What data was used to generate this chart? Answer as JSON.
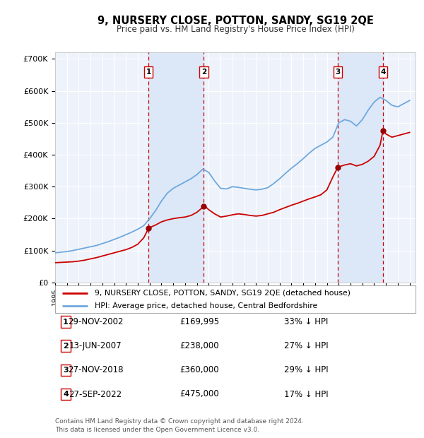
{
  "title": "9, NURSERY CLOSE, POTTON, SANDY, SG19 2QE",
  "subtitle": "Price paid vs. HM Land Registry's House Price Index (HPI)",
  "background_color": "#ffffff",
  "plot_background": "#eef3fb",
  "grid_color": "#ffffff",
  "sale_dates_num": [
    2002.91,
    2007.58,
    2018.91,
    2022.74
  ],
  "sale_labels": [
    "1",
    "2",
    "3",
    "4"
  ],
  "sale_info": [
    {
      "num": "1",
      "date": "29-NOV-2002",
      "price": "£169,995",
      "pct": "33% ↓ HPI"
    },
    {
      "num": "2",
      "date": "13-JUN-2007",
      "price": "£238,000",
      "pct": "27% ↓ HPI"
    },
    {
      "num": "3",
      "date": "27-NOV-2018",
      "price": "£360,000",
      "pct": "29% ↓ HPI"
    },
    {
      "num": "4",
      "date": "27-SEP-2022",
      "price": "£475,000",
      "pct": "17% ↓ HPI"
    }
  ],
  "legend_line1": "9, NURSERY CLOSE, POTTON, SANDY, SG19 2QE (detached house)",
  "legend_line2": "HPI: Average price, detached house, Central Bedfordshire",
  "footer": "Contains HM Land Registry data © Crown copyright and database right 2024.\nThis data is licensed under the Open Government Licence v3.0.",
  "hpi_color": "#6fa8dc",
  "price_color": "#cc0000",
  "vline_color": "#cc0000",
  "shade_color": "#dce8f8",
  "dot_color": "#990000",
  "ylim": [
    0,
    720000
  ],
  "xlim_start": 1995.0,
  "xlim_end": 2025.5,
  "hpi_data_x": [
    1995.0,
    1995.5,
    1996.0,
    1996.5,
    1997.0,
    1997.5,
    1998.0,
    1998.5,
    1999.0,
    1999.5,
    2000.0,
    2000.5,
    2001.0,
    2001.5,
    2002.0,
    2002.5,
    2003.0,
    2003.5,
    2004.0,
    2004.5,
    2005.0,
    2005.5,
    2006.0,
    2006.5,
    2007.0,
    2007.5,
    2008.0,
    2008.5,
    2009.0,
    2009.5,
    2010.0,
    2010.5,
    2011.0,
    2011.5,
    2012.0,
    2012.5,
    2013.0,
    2013.5,
    2014.0,
    2014.5,
    2015.0,
    2015.5,
    2016.0,
    2016.5,
    2017.0,
    2017.5,
    2018.0,
    2018.5,
    2019.0,
    2019.5,
    2020.0,
    2020.5,
    2021.0,
    2021.5,
    2022.0,
    2022.5,
    2023.0,
    2023.5,
    2024.0,
    2024.5,
    2025.0
  ],
  "hpi_data_y": [
    93000,
    95000,
    97000,
    100000,
    104000,
    108000,
    112000,
    116000,
    122000,
    128000,
    135000,
    142000,
    150000,
    158000,
    167000,
    178000,
    200000,
    225000,
    255000,
    280000,
    295000,
    305000,
    315000,
    325000,
    338000,
    355000,
    345000,
    318000,
    295000,
    293000,
    300000,
    298000,
    295000,
    292000,
    290000,
    292000,
    297000,
    310000,
    325000,
    342000,
    358000,
    372000,
    388000,
    405000,
    420000,
    430000,
    440000,
    455000,
    500000,
    510000,
    505000,
    490000,
    510000,
    540000,
    565000,
    580000,
    570000,
    555000,
    550000,
    560000,
    570000
  ],
  "price_data_x": [
    1995.0,
    1995.5,
    1996.0,
    1996.5,
    1997.0,
    1997.5,
    1998.0,
    1998.5,
    1999.0,
    1999.5,
    2000.0,
    2000.5,
    2001.0,
    2001.5,
    2002.0,
    2002.5,
    2002.91,
    2003.0,
    2003.5,
    2004.0,
    2004.5,
    2005.0,
    2005.5,
    2006.0,
    2006.5,
    2007.0,
    2007.58,
    2007.8,
    2008.0,
    2008.5,
    2009.0,
    2009.5,
    2010.0,
    2010.5,
    2011.0,
    2011.5,
    2012.0,
    2012.5,
    2013.0,
    2013.5,
    2014.0,
    2014.5,
    2015.0,
    2015.5,
    2016.0,
    2016.5,
    2017.0,
    2017.5,
    2018.0,
    2018.5,
    2018.91,
    2019.0,
    2019.5,
    2020.0,
    2020.5,
    2021.0,
    2021.5,
    2022.0,
    2022.5,
    2022.74,
    2022.9,
    2023.0,
    2023.5,
    2024.0,
    2024.5,
    2025.0
  ],
  "price_data_y": [
    62000,
    63000,
    64000,
    65000,
    67000,
    70000,
    74000,
    78000,
    83000,
    88000,
    93000,
    98000,
    103000,
    110000,
    120000,
    140000,
    169995,
    172000,
    180000,
    190000,
    196000,
    200000,
    203000,
    205000,
    210000,
    220000,
    238000,
    235000,
    228000,
    215000,
    205000,
    208000,
    212000,
    215000,
    213000,
    210000,
    208000,
    210000,
    215000,
    220000,
    228000,
    235000,
    242000,
    248000,
    255000,
    262000,
    268000,
    275000,
    290000,
    330000,
    360000,
    362000,
    368000,
    372000,
    365000,
    370000,
    380000,
    395000,
    430000,
    475000,
    470000,
    465000,
    455000,
    460000,
    465000,
    470000
  ]
}
